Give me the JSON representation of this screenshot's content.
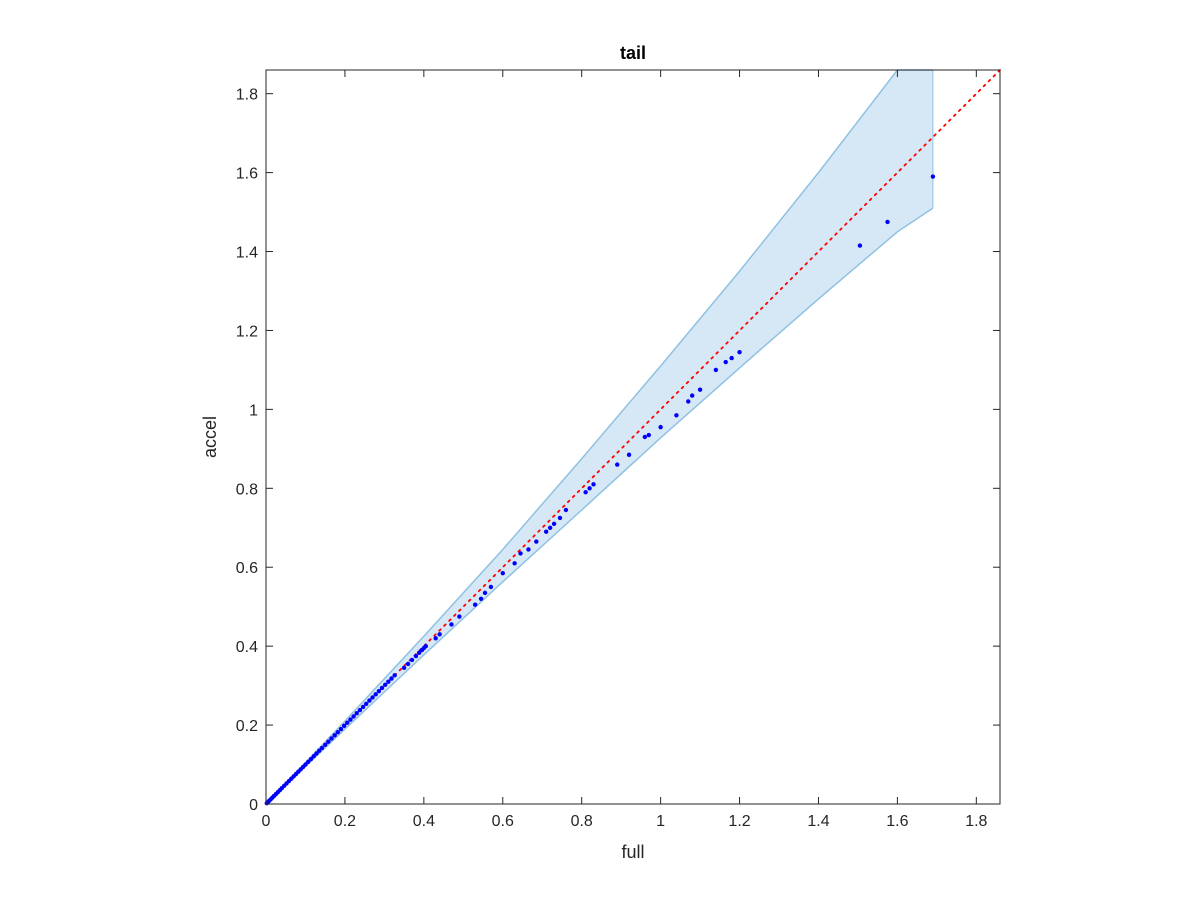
{
  "chart_data": {
    "type": "scatter",
    "title": "tail",
    "xlabel": "full",
    "ylabel": "accel",
    "xlim": [
      0,
      1.86
    ],
    "ylim": [
      0,
      1.86
    ],
    "xticks": [
      "0",
      "0.2",
      "0.4",
      "0.6",
      "0.8",
      "1",
      "1.2",
      "1.4",
      "1.6",
      "1.8"
    ],
    "yticks": [
      "0",
      "0.2",
      "0.4",
      "0.6",
      "0.8",
      "1",
      "1.2",
      "1.4",
      "1.6",
      "1.8"
    ],
    "tick_values": [
      0,
      0.2,
      0.4,
      0.6,
      0.8,
      1.0,
      1.2,
      1.4,
      1.6,
      1.8
    ],
    "grid": false,
    "reference_line": {
      "from": [
        0,
        0
      ],
      "to": [
        1.86,
        1.86
      ],
      "style": "dotted"
    },
    "confidence_band": {
      "x": [
        0,
        0.2,
        0.4,
        0.6,
        0.8,
        1.0,
        1.2,
        1.4,
        1.6,
        1.69
      ],
      "upper": [
        0,
        0.21,
        0.425,
        0.645,
        0.875,
        1.11,
        1.35,
        1.6,
        1.86,
        1.98
      ],
      "lower": [
        0,
        0.19,
        0.378,
        0.563,
        0.745,
        0.928,
        1.105,
        1.28,
        1.45,
        1.51
      ]
    },
    "series": [
      {
        "x": [
          0.002,
          0.005,
          0.008,
          0.012,
          0.016,
          0.02,
          0.025,
          0.03,
          0.035,
          0.04,
          0.046,
          0.052,
          0.058,
          0.064,
          0.07,
          0.076,
          0.082,
          0.088,
          0.094,
          0.1,
          0.107,
          0.114,
          0.121,
          0.128,
          0.135,
          0.142,
          0.15,
          0.158,
          0.166,
          0.174,
          0.182,
          0.19,
          0.198,
          0.206,
          0.214,
          0.222,
          0.23,
          0.238,
          0.246,
          0.254,
          0.262,
          0.27,
          0.278,
          0.286,
          0.294,
          0.302,
          0.31,
          0.318,
          0.326,
          0.35,
          0.36,
          0.37,
          0.38,
          0.388,
          0.395,
          0.4,
          0.405,
          0.43,
          0.44,
          0.47,
          0.49,
          0.53,
          0.545,
          0.555,
          0.57,
          0.6,
          0.63,
          0.645,
          0.665,
          0.685,
          0.71,
          0.72,
          0.73,
          0.745,
          0.76,
          0.81,
          0.82,
          0.83,
          0.89,
          0.92,
          0.96,
          0.97,
          1.0,
          1.04,
          1.07,
          1.08,
          1.1,
          1.14,
          1.165,
          1.18,
          1.2,
          1.505,
          1.575,
          1.69
        ],
        "y": [
          0.002,
          0.005,
          0.008,
          0.012,
          0.016,
          0.02,
          0.025,
          0.03,
          0.035,
          0.04,
          0.046,
          0.052,
          0.058,
          0.064,
          0.07,
          0.076,
          0.082,
          0.088,
          0.094,
          0.1,
          0.107,
          0.114,
          0.121,
          0.128,
          0.135,
          0.142,
          0.15,
          0.158,
          0.166,
          0.174,
          0.182,
          0.19,
          0.198,
          0.206,
          0.214,
          0.222,
          0.23,
          0.238,
          0.246,
          0.254,
          0.262,
          0.27,
          0.278,
          0.286,
          0.294,
          0.302,
          0.31,
          0.318,
          0.326,
          0.345,
          0.355,
          0.365,
          0.375,
          0.383,
          0.39,
          0.395,
          0.4,
          0.42,
          0.43,
          0.455,
          0.475,
          0.505,
          0.52,
          0.535,
          0.55,
          0.585,
          0.61,
          0.635,
          0.645,
          0.665,
          0.69,
          0.7,
          0.71,
          0.725,
          0.745,
          0.79,
          0.8,
          0.81,
          0.86,
          0.885,
          0.93,
          0.935,
          0.955,
          0.985,
          1.02,
          1.035,
          1.05,
          1.1,
          1.12,
          1.13,
          1.145,
          1.415,
          1.475,
          1.59
        ]
      }
    ],
    "colors": {
      "points": "#0000ff",
      "reference_line": "#ff0000",
      "band_fill": "#d6e8f5",
      "band_edge": "#8fc1e3",
      "axes": "#262626"
    }
  }
}
